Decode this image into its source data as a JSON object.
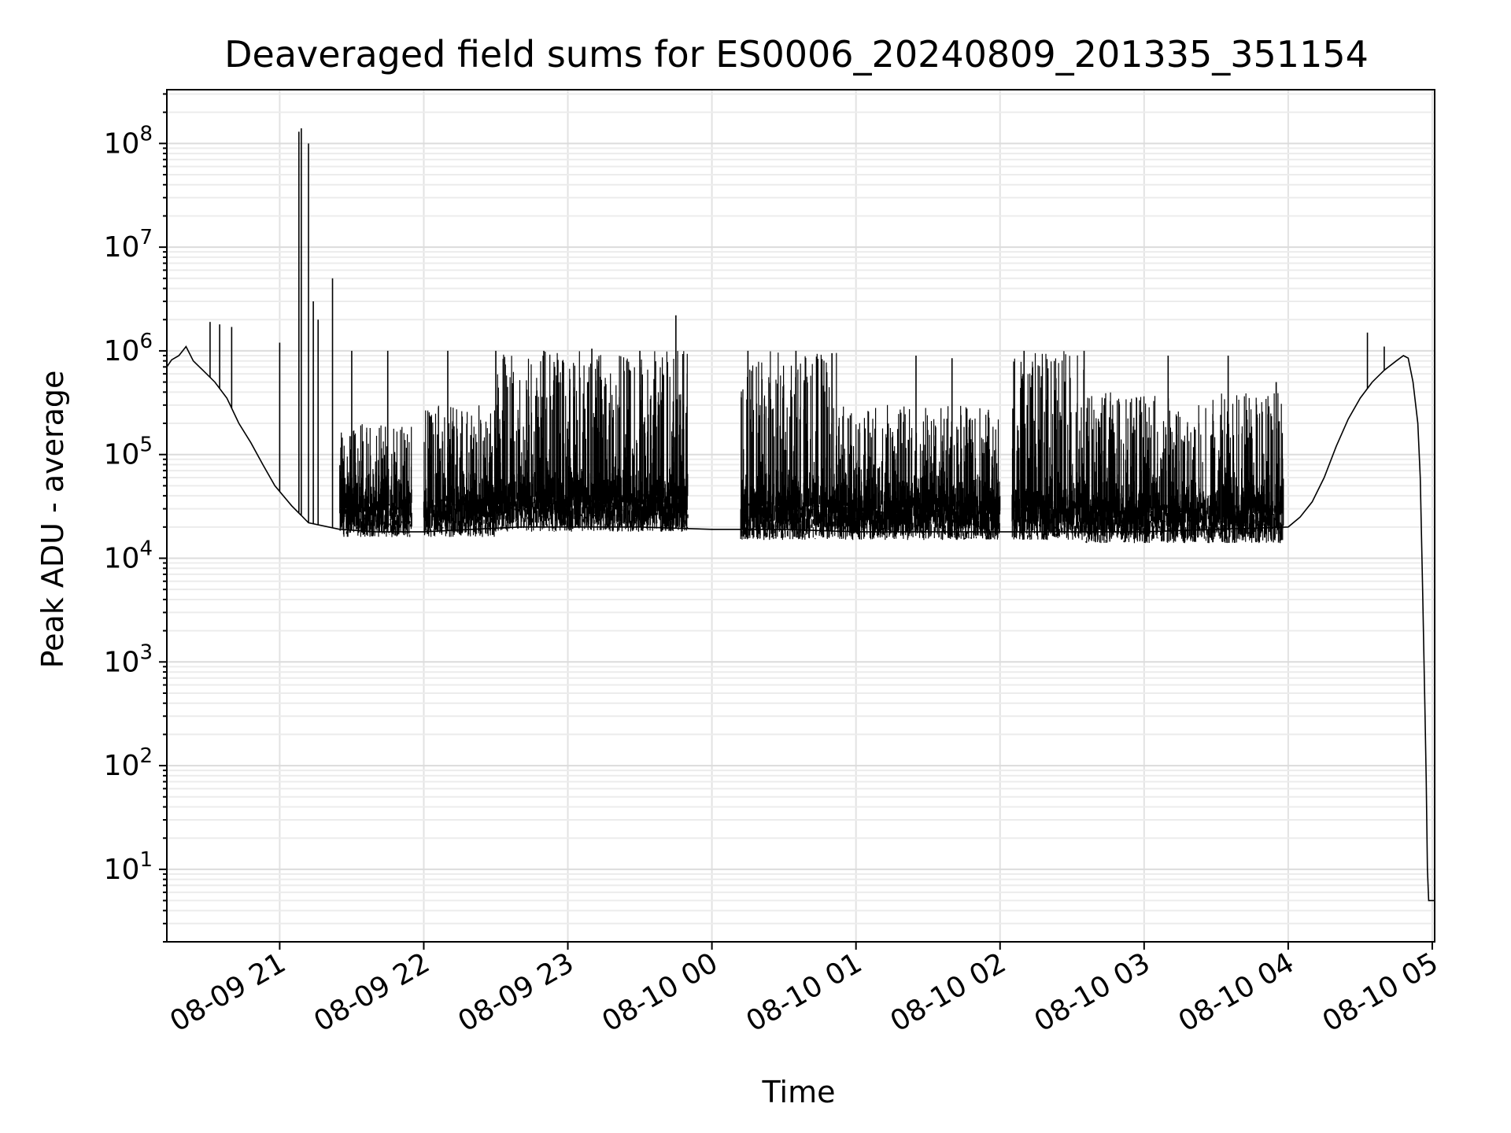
{
  "chart_data": {
    "type": "line",
    "title": "Deaveraged field sums for ES0006_20240809_201335_351154",
    "xlabel": "Time",
    "ylabel": "Peak ADU - average",
    "y_scale": "log",
    "ylim": [
      2,
      330000000.0
    ],
    "xlim": [
      "2024-08-09 20:13",
      "2024-08-10 05:01"
    ],
    "grid": true,
    "legend": "none",
    "line_color": "#000000",
    "x_ticks": [
      {
        "t": "2024-08-09 21:00",
        "label": "08-09 21"
      },
      {
        "t": "2024-08-09 22:00",
        "label": "08-09 22"
      },
      {
        "t": "2024-08-09 23:00",
        "label": "08-09 23"
      },
      {
        "t": "2024-08-10 00:00",
        "label": "08-10 00"
      },
      {
        "t": "2024-08-10 01:00",
        "label": "08-10 01"
      },
      {
        "t": "2024-08-10 02:00",
        "label": "08-10 02"
      },
      {
        "t": "2024-08-10 03:00",
        "label": "08-10 03"
      },
      {
        "t": "2024-08-10 04:00",
        "label": "08-10 04"
      },
      {
        "t": "2024-08-10 05:00",
        "label": "08-10 05"
      }
    ],
    "y_ticks": [
      {
        "value": 10,
        "base": "10",
        "exp": "1"
      },
      {
        "value": 100,
        "base": "10",
        "exp": "2"
      },
      {
        "value": 1000,
        "base": "10",
        "exp": "3"
      },
      {
        "value": 10000,
        "base": "10",
        "exp": "4"
      },
      {
        "value": 100000,
        "base": "10",
        "exp": "5"
      },
      {
        "value": 1000000,
        "base": "10",
        "exp": "6"
      },
      {
        "value": 10000000,
        "base": "10",
        "exp": "7"
      },
      {
        "value": 100000000,
        "base": "10",
        "exp": "8"
      }
    ],
    "series": [
      {
        "points": [
          [
            "2024-08-09 20:13",
            700000
          ],
          [
            "2024-08-09 20:15",
            820000
          ],
          [
            "2024-08-09 20:18",
            900000
          ],
          [
            "2024-08-09 20:21",
            1100000
          ],
          [
            "2024-08-09 20:24",
            800000
          ],
          [
            "2024-08-09 20:28",
            650000
          ],
          [
            "2024-08-09 20:33",
            500000
          ],
          [
            "2024-08-09 20:38",
            350000
          ],
          [
            "2024-08-09 20:43",
            200000
          ],
          [
            "2024-08-09 20:48",
            130000
          ],
          [
            "2024-08-09 20:53",
            80000
          ],
          [
            "2024-08-09 20:58",
            50000
          ],
          [
            "2024-08-09 21:05",
            32000
          ],
          [
            "2024-08-09 21:12",
            22000
          ],
          [
            "2024-08-09 21:25",
            19000
          ],
          [
            "2024-08-09 21:40",
            18000
          ],
          [
            "2024-08-09 22:00",
            18000
          ],
          [
            "2024-08-09 22:20",
            19000
          ],
          [
            "2024-08-09 22:40",
            20000
          ],
          [
            "2024-08-09 23:00",
            20000
          ],
          [
            "2024-08-09 23:30",
            20000
          ],
          [
            "2024-08-10 00:00",
            19000
          ],
          [
            "2024-08-10 00:30",
            19000
          ],
          [
            "2024-08-10 01:00",
            18000
          ],
          [
            "2024-08-10 01:30",
            18000
          ],
          [
            "2024-08-10 02:00",
            18000
          ],
          [
            "2024-08-10 02:30",
            18000
          ],
          [
            "2024-08-10 03:00",
            18000
          ],
          [
            "2024-08-10 03:30",
            19000
          ],
          [
            "2024-08-10 04:00",
            20000
          ],
          [
            "2024-08-10 04:05",
            25000
          ],
          [
            "2024-08-10 04:10",
            35000
          ],
          [
            "2024-08-10 04:15",
            60000
          ],
          [
            "2024-08-10 04:20",
            120000
          ],
          [
            "2024-08-10 04:25",
            220000
          ],
          [
            "2024-08-10 04:30",
            350000
          ],
          [
            "2024-08-10 04:35",
            500000
          ],
          [
            "2024-08-10 04:40",
            650000
          ],
          [
            "2024-08-10 04:45",
            800000
          ],
          [
            "2024-08-10 04:48",
            900000
          ],
          [
            "2024-08-10 04:50",
            850000
          ],
          [
            "2024-08-10 04:52",
            500000
          ],
          [
            "2024-08-10 04:54",
            200000
          ],
          [
            "2024-08-10 04:55",
            60000
          ],
          [
            "2024-08-10 04:56",
            5000
          ],
          [
            "2024-08-10 04:57",
            300
          ],
          [
            "2024-08-10 04:57.5",
            70
          ],
          [
            "2024-08-10 04:58",
            10
          ],
          [
            "2024-08-10 04:58.5",
            5
          ],
          [
            "2024-08-10 05:01",
            5
          ]
        ]
      }
    ],
    "spikes": [
      [
        "2024-08-09 21:08",
        130000000
      ],
      [
        "2024-08-09 21:09",
        140000000
      ],
      [
        "2024-08-09 21:12",
        100000000
      ],
      [
        "2024-08-09 21:14",
        3000000
      ],
      [
        "2024-08-09 21:16",
        2000000
      ],
      [
        "2024-08-09 21:22",
        5000000
      ],
      [
        "2024-08-09 20:31",
        1900000
      ],
      [
        "2024-08-09 20:35",
        1800000
      ],
      [
        "2024-08-09 20:40",
        1700000
      ],
      [
        "2024-08-09 21:00",
        1200000
      ],
      [
        "2024-08-09 21:30",
        1000000
      ],
      [
        "2024-08-09 21:45",
        1000000
      ],
      [
        "2024-08-09 22:10",
        1000000
      ],
      [
        "2024-08-09 22:30",
        1000000
      ],
      [
        "2024-08-09 22:50",
        1000000
      ],
      [
        "2024-08-09 23:10",
        1050000
      ],
      [
        "2024-08-09 23:30",
        1000000
      ],
      [
        "2024-08-09 23:45",
        2200000
      ],
      [
        "2024-08-10 00:15",
        1000000
      ],
      [
        "2024-08-10 00:35",
        1000000
      ],
      [
        "2024-08-10 00:50",
        950000
      ],
      [
        "2024-08-10 01:25",
        900000
      ],
      [
        "2024-08-10 01:40",
        850000
      ],
      [
        "2024-08-10 02:10",
        1000000
      ],
      [
        "2024-08-10 02:35",
        1000000
      ],
      [
        "2024-08-10 03:10",
        900000
      ],
      [
        "2024-08-10 03:35",
        900000
      ],
      [
        "2024-08-10 03:55",
        500000
      ],
      [
        "2024-08-10 04:33",
        1500000
      ],
      [
        "2024-08-10 04:40",
        1100000
      ]
    ],
    "dense_bands": [
      {
        "from": "2024-08-09 21:25",
        "to": "2024-08-09 21:55",
        "low": 16000,
        "high": 200000
      },
      {
        "from": "2024-08-09 22:00",
        "to": "2024-08-09 22:30",
        "low": 16000,
        "high": 300000
      },
      {
        "from": "2024-08-09 22:30",
        "to": "2024-08-09 23:50",
        "low": 18000,
        "high": 1000000
      },
      {
        "from": "2024-08-10 00:12",
        "to": "2024-08-10 00:52",
        "low": 15000,
        "high": 1000000
      },
      {
        "from": "2024-08-10 00:52",
        "to": "2024-08-10 02:00",
        "low": 15000,
        "high": 300000
      },
      {
        "from": "2024-08-10 02:05",
        "to": "2024-08-10 02:35",
        "low": 15000,
        "high": 1000000
      },
      {
        "from": "2024-08-10 02:35",
        "to": "2024-08-10 03:58",
        "low": 14000,
        "high": 400000
      }
    ]
  }
}
